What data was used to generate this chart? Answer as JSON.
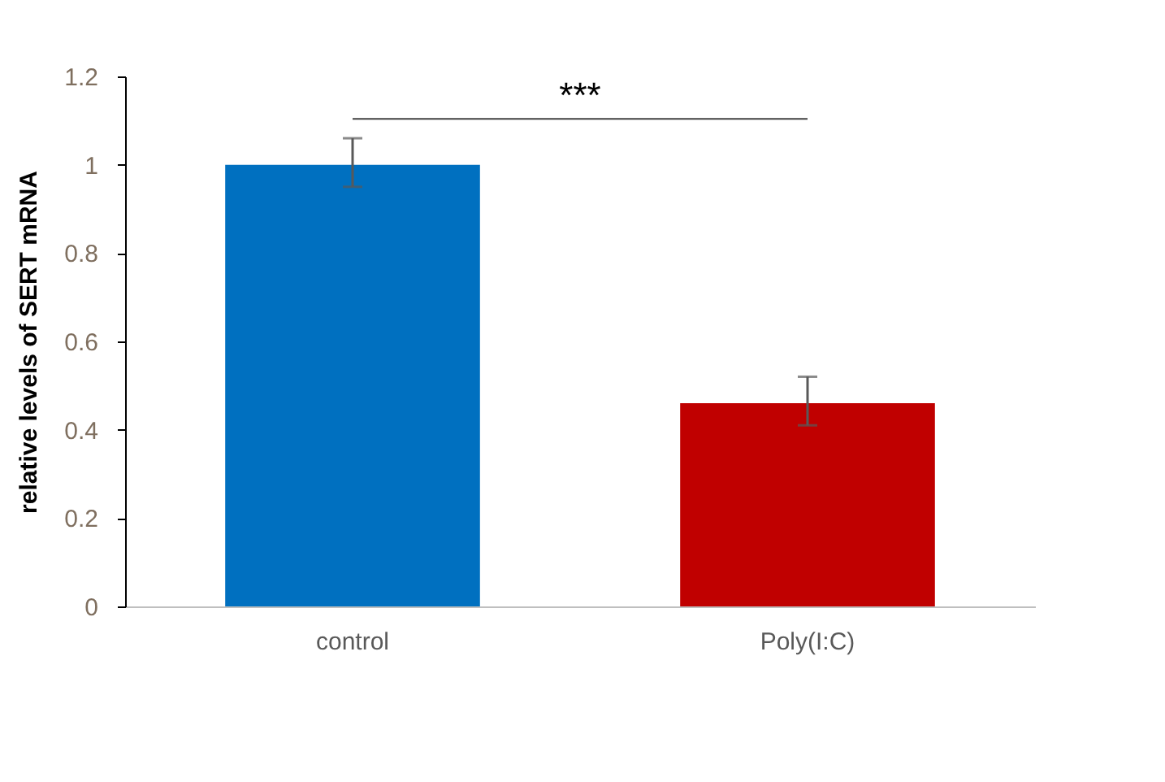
{
  "chart_data": {
    "type": "bar",
    "ylabel": "relative levels of SERT mRNA",
    "categories": [
      "control",
      "Poly(I:C)"
    ],
    "values": [
      1.0,
      0.46
    ],
    "colors": [
      "#0070c0",
      "#c00000"
    ],
    "errors": [
      [
        0.95,
        1.06
      ],
      [
        0.41,
        0.52
      ]
    ],
    "ylim": [
      0,
      1.2
    ],
    "yticks": [
      0,
      0.2,
      0.4,
      0.6,
      0.8,
      1,
      1.2
    ],
    "grid": false,
    "legend": false,
    "annotations": [
      "***"
    ]
  }
}
